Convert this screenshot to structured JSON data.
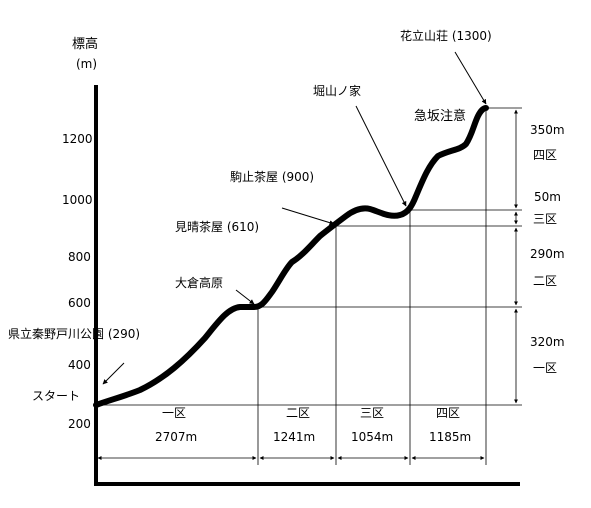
{
  "y_axis": {
    "label_line1": "標高",
    "label_line2": "(m)",
    "ticks": [
      "200",
      "400",
      "600",
      "800",
      "1000",
      "1200"
    ]
  },
  "points": {
    "start_label": "スタート",
    "start": "県立秦野戸川公園 (290)",
    "p1": "大倉高原",
    "p2": "見晴茶屋 (610)",
    "p3": "駒止茶屋 (900)",
    "p4": "堀山ノ家",
    "p5": "急坂注意",
    "peak": "花立山荘 (1300)"
  },
  "horizontal_segments": [
    {
      "name": "一区",
      "distance": "2707m"
    },
    {
      "name": "二区",
      "distance": "1241m"
    },
    {
      "name": "三区",
      "distance": "1054m"
    },
    {
      "name": "四区",
      "distance": "1185m"
    }
  ],
  "vertical_segments": [
    {
      "name": "四区",
      "gain": "350m"
    },
    {
      "name": "三区",
      "gain": "50m"
    },
    {
      "name": "二区",
      "gain": "290m"
    },
    {
      "name": "一区",
      "gain": "320m"
    }
  ]
}
